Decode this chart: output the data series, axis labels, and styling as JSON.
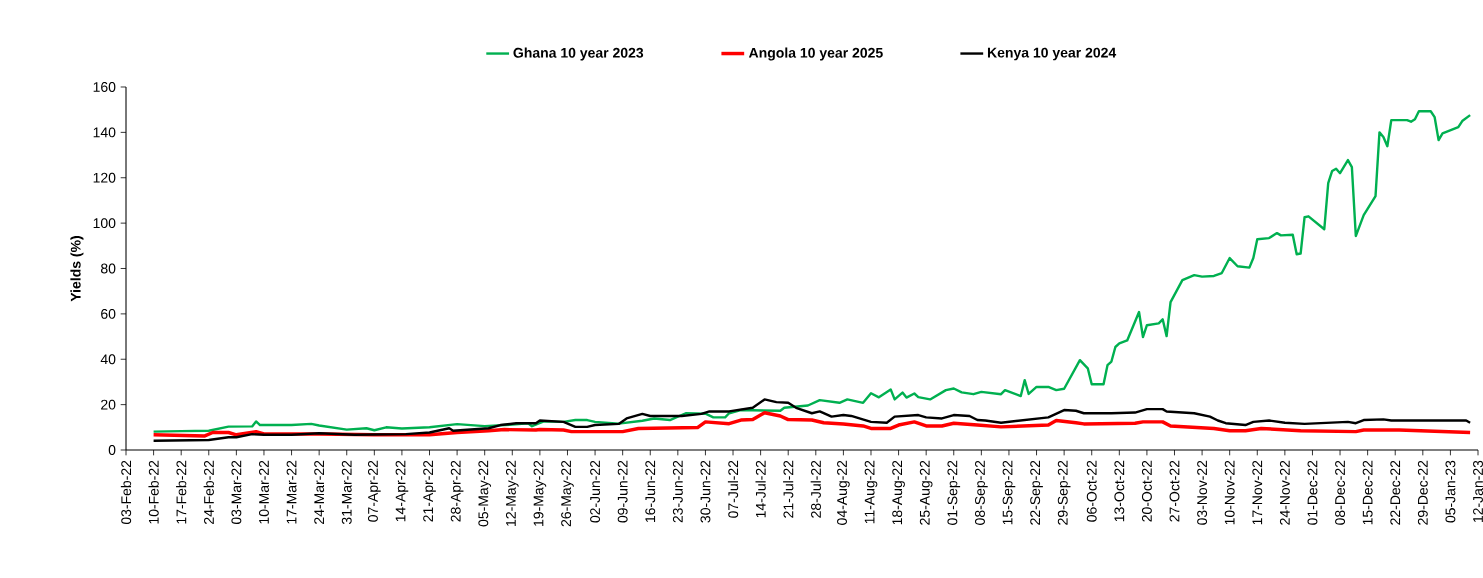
{
  "chart_data": {
    "type": "line",
    "ylabel": "Yields (%)",
    "legend": "top",
    "line_style": "solid",
    "marker": "none",
    "grid": false,
    "xlim": [
      "2022-02-03",
      "2023-01-12"
    ],
    "ylim": [
      0,
      160
    ],
    "yticks": [
      0,
      20,
      40,
      60,
      80,
      100,
      120,
      140,
      160
    ],
    "xticks": [
      {
        "value": "2022-02-03",
        "label": "03-Feb-22"
      },
      {
        "value": "2022-02-10",
        "label": "10-Feb-22"
      },
      {
        "value": "2022-02-17",
        "label": "17-Feb-22"
      },
      {
        "value": "2022-02-24",
        "label": "24-Feb-22"
      },
      {
        "value": "2022-03-03",
        "label": "03-Mar-22"
      },
      {
        "value": "2022-03-10",
        "label": "10-Mar-22"
      },
      {
        "value": "2022-03-17",
        "label": "17-Mar-22"
      },
      {
        "value": "2022-03-24",
        "label": "24-Mar-22"
      },
      {
        "value": "2022-03-31",
        "label": "31-Mar-22"
      },
      {
        "value": "2022-04-07",
        "label": "07-Apr-22"
      },
      {
        "value": "2022-04-14",
        "label": "14-Apr-22"
      },
      {
        "value": "2022-04-21",
        "label": "21-Apr-22"
      },
      {
        "value": "2022-04-28",
        "label": "28-Apr-22"
      },
      {
        "value": "2022-05-05",
        "label": "05-May-22"
      },
      {
        "value": "2022-05-12",
        "label": "12-May-22"
      },
      {
        "value": "2022-05-19",
        "label": "19-May-22"
      },
      {
        "value": "2022-05-26",
        "label": "26-May-22"
      },
      {
        "value": "2022-06-02",
        "label": "02-Jun-22"
      },
      {
        "value": "2022-06-09",
        "label": "09-Jun-22"
      },
      {
        "value": "2022-06-16",
        "label": "16-Jun-22"
      },
      {
        "value": "2022-06-23",
        "label": "23-Jun-22"
      },
      {
        "value": "2022-06-30",
        "label": "30-Jun-22"
      },
      {
        "value": "2022-07-07",
        "label": "07-Jul-22"
      },
      {
        "value": "2022-07-14",
        "label": "14-Jul-22"
      },
      {
        "value": "2022-07-21",
        "label": "21-Jul-22"
      },
      {
        "value": "2022-07-28",
        "label": "28-Jul-22"
      },
      {
        "value": "2022-08-04",
        "label": "04-Aug-22"
      },
      {
        "value": "2022-08-11",
        "label": "11-Aug-22"
      },
      {
        "value": "2022-08-18",
        "label": "18-Aug-22"
      },
      {
        "value": "2022-08-25",
        "label": "25-Aug-22"
      },
      {
        "value": "2022-09-01",
        "label": "01-Sep-22"
      },
      {
        "value": "2022-09-08",
        "label": "08-Sep-22"
      },
      {
        "value": "2022-09-15",
        "label": "15-Sep-22"
      },
      {
        "value": "2022-09-22",
        "label": "22-Sep-22"
      },
      {
        "value": "2022-09-29",
        "label": "29-Sep-22"
      },
      {
        "value": "2022-10-06",
        "label": "06-Oct-22"
      },
      {
        "value": "2022-10-13",
        "label": "13-Oct-22"
      },
      {
        "value": "2022-10-20",
        "label": "20-Oct-22"
      },
      {
        "value": "2022-10-27",
        "label": "27-Oct-22"
      },
      {
        "value": "2022-11-03",
        "label": "03-Nov-22"
      },
      {
        "value": "2022-11-10",
        "label": "10-Nov-22"
      },
      {
        "value": "2022-11-17",
        "label": "17-Nov-22"
      },
      {
        "value": "2022-11-24",
        "label": "24-Nov-22"
      },
      {
        "value": "2022-12-01",
        "label": "01-Dec-22"
      },
      {
        "value": "2022-12-08",
        "label": "08-Dec-22"
      },
      {
        "value": "2022-12-15",
        "label": "15-Dec-22"
      },
      {
        "value": "2022-12-22",
        "label": "22-Dec-22"
      },
      {
        "value": "2022-12-29",
        "label": "29-Dec-22"
      },
      {
        "value": "2023-01-05",
        "label": "05-Jan-23"
      },
      {
        "value": "2023-01-12",
        "label": "12-Jan-23"
      }
    ],
    "series": [
      {
        "name": "Ghana 10 year 2023",
        "color": "#00b050",
        "x": [
          "2022-02-10",
          "2022-02-17",
          "2022-02-24",
          "2022-03-01",
          "2022-03-07",
          "2022-03-08",
          "2022-03-09",
          "2022-03-17",
          "2022-03-22",
          "2022-03-24",
          "2022-03-31",
          "2022-04-05",
          "2022-04-07",
          "2022-04-10",
          "2022-04-14",
          "2022-04-21",
          "2022-04-28",
          "2022-05-05",
          "2022-05-12",
          "2022-05-16",
          "2022-05-17",
          "2022-05-20",
          "2022-05-25",
          "2022-05-28",
          "2022-05-31",
          "2022-06-02",
          "2022-06-08",
          "2022-06-14",
          "2022-06-17",
          "2022-06-21",
          "2022-06-25",
          "2022-06-30",
          "2022-07-02",
          "2022-07-05",
          "2022-07-06",
          "2022-07-09",
          "2022-07-19",
          "2022-07-20",
          "2022-07-26",
          "2022-07-29",
          "2022-08-03",
          "2022-08-05",
          "2022-08-09",
          "2022-08-11",
          "2022-08-13",
          "2022-08-16",
          "2022-08-17",
          "2022-08-19",
          "2022-08-20",
          "2022-08-22",
          "2022-08-23",
          "2022-08-26",
          "2022-08-30",
          "2022-09-01",
          "2022-09-03",
          "2022-09-06",
          "2022-09-08",
          "2022-09-13",
          "2022-09-14",
          "2022-09-18",
          "2022-09-19",
          "2022-09-20",
          "2022-09-22",
          "2022-09-25",
          "2022-09-27",
          "2022-09-29",
          "2022-10-03",
          "2022-10-05",
          "2022-10-06",
          "2022-10-09",
          "2022-10-10",
          "2022-10-11",
          "2022-10-12",
          "2022-10-13",
          "2022-10-15",
          "2022-10-18",
          "2022-10-19",
          "2022-10-20",
          "2022-10-23",
          "2022-10-24",
          "2022-10-25",
          "2022-10-26",
          "2022-10-29",
          "2022-11-01",
          "2022-11-03",
          "2022-11-06",
          "2022-11-08",
          "2022-11-10",
          "2022-11-12",
          "2022-11-15",
          "2022-11-16",
          "2022-11-17",
          "2022-11-20",
          "2022-11-22",
          "2022-11-23",
          "2022-11-26",
          "2022-11-27",
          "2022-11-28",
          "2022-11-29",
          "2022-11-30",
          "2022-12-04",
          "2022-12-05",
          "2022-12-06",
          "2022-12-07",
          "2022-12-08",
          "2022-12-10",
          "2022-12-11",
          "2022-12-12",
          "2022-12-14",
          "2022-12-17",
          "2022-12-18",
          "2022-12-19",
          "2022-12-20",
          "2022-12-21",
          "2022-12-25",
          "2022-12-26",
          "2022-12-27",
          "2022-12-28",
          "2022-12-31",
          "2023-01-01",
          "2023-01-02",
          "2023-01-03",
          "2023-01-07",
          "2023-01-08",
          "2023-01-10"
        ],
        "values": [
          8.1,
          8.3,
          8.5,
          10.3,
          10.4,
          12.6,
          11,
          11,
          11.5,
          10.8,
          9,
          9.6,
          8.7,
          10,
          9.5,
          10,
          11.4,
          10.5,
          11.2,
          11.8,
          10.5,
          12.6,
          12.4,
          13.2,
          13.2,
          12.4,
          11.6,
          12.9,
          13.9,
          13.2,
          16.2,
          16,
          14.4,
          14.4,
          16.2,
          17.6,
          17.3,
          18.6,
          19.6,
          22,
          20.8,
          22.3,
          20.8,
          25,
          23.2,
          26.7,
          22.3,
          25.3,
          23.1,
          24.9,
          23.3,
          22.3,
          26.4,
          27.1,
          25.4,
          24.6,
          25.6,
          24.6,
          26.4,
          23.8,
          30.8,
          24.7,
          27.8,
          27.8,
          26.4,
          27,
          39.6,
          36,
          29,
          29,
          37.4,
          39,
          45.4,
          47,
          48.3,
          60.8,
          49.8,
          55,
          55.8,
          57.6,
          50.2,
          65.2,
          74.9,
          77.1,
          76.4,
          76.7,
          78,
          84.6,
          81,
          80.4,
          84.6,
          92.9,
          93.4,
          95.6,
          94.6,
          94.9,
          86.3,
          86.6,
          102.6,
          103,
          97.3,
          117.6,
          123,
          124,
          122,
          127.8,
          124.7,
          94.3,
          103.5,
          111.9,
          140,
          138,
          133.9,
          145.4,
          145.4,
          144.7,
          145.8,
          149.3,
          149.3,
          146.7,
          136.6,
          139.6,
          142.3,
          145,
          147.6
        ]
      },
      {
        "name": "Angola 10 year 2025",
        "color": "#ff0000",
        "x": [
          "2022-02-10",
          "2022-02-23",
          "2022-02-25",
          "2022-03-01",
          "2022-03-03",
          "2022-03-08",
          "2022-03-10",
          "2022-03-24",
          "2022-04-07",
          "2022-04-21",
          "2022-04-28",
          "2022-05-06",
          "2022-05-10",
          "2022-05-18",
          "2022-05-19",
          "2022-05-25",
          "2022-05-27",
          "2022-06-09",
          "2022-06-13",
          "2022-06-28",
          "2022-06-30",
          "2022-07-06",
          "2022-07-09",
          "2022-07-12",
          "2022-07-15",
          "2022-07-19",
          "2022-07-21",
          "2022-07-27",
          "2022-07-30",
          "2022-08-04",
          "2022-08-09",
          "2022-08-11",
          "2022-08-16",
          "2022-08-18",
          "2022-08-22",
          "2022-08-25",
          "2022-08-29",
          "2022-09-01",
          "2022-09-07",
          "2022-09-13",
          "2022-09-25",
          "2022-09-27",
          "2022-10-02",
          "2022-10-04",
          "2022-10-17",
          "2022-10-19",
          "2022-10-24",
          "2022-10-26",
          "2022-11-06",
          "2022-11-10",
          "2022-11-14",
          "2022-11-18",
          "2022-11-28",
          "2022-12-12",
          "2022-12-14",
          "2022-12-23",
          "2023-01-10"
        ],
        "values": [
          6.7,
          6.2,
          7.7,
          7.7,
          6.7,
          8.1,
          7.1,
          7.1,
          6.7,
          6.7,
          7.7,
          8.5,
          9,
          8.8,
          9,
          8.8,
          8.1,
          8.1,
          9.5,
          9.9,
          12.4,
          11.6,
          13.2,
          13.4,
          16.4,
          15,
          13.4,
          13.2,
          12,
          11.5,
          10.6,
          9.5,
          9.5,
          11,
          12.4,
          10.6,
          10.6,
          11.8,
          11,
          10.2,
          11,
          13,
          12,
          11.5,
          11.8,
          12.4,
          12.4,
          10.6,
          9.5,
          8.5,
          8.5,
          9.5,
          8.5,
          8.1,
          8.8,
          8.8,
          7.7
        ]
      },
      {
        "name": "Kenya 10 year 2024",
        "color": "#000000",
        "x": [
          "2022-02-10",
          "2022-02-24",
          "2022-03-01",
          "2022-03-03",
          "2022-03-07",
          "2022-03-10",
          "2022-03-17",
          "2022-03-24",
          "2022-04-02",
          "2022-04-15",
          "2022-04-21",
          "2022-04-26",
          "2022-04-27",
          "2022-05-06",
          "2022-05-09",
          "2022-05-13",
          "2022-05-18",
          "2022-05-19",
          "2022-05-25",
          "2022-05-28",
          "2022-05-31",
          "2022-06-02",
          "2022-06-08",
          "2022-06-10",
          "2022-06-14",
          "2022-06-16",
          "2022-06-24",
          "2022-06-29",
          "2022-07-01",
          "2022-07-06",
          "2022-07-12",
          "2022-07-15",
          "2022-07-18",
          "2022-07-21",
          "2022-07-23",
          "2022-07-27",
          "2022-07-29",
          "2022-08-01",
          "2022-08-04",
          "2022-08-06",
          "2022-08-11",
          "2022-08-15",
          "2022-08-17",
          "2022-08-23",
          "2022-08-25",
          "2022-08-29",
          "2022-09-01",
          "2022-09-05",
          "2022-09-07",
          "2022-09-09",
          "2022-09-13",
          "2022-09-25",
          "2022-09-29",
          "2022-10-02",
          "2022-10-04",
          "2022-10-11",
          "2022-10-17",
          "2022-10-20",
          "2022-10-24",
          "2022-10-25",
          "2022-11-01",
          "2022-11-05",
          "2022-11-07",
          "2022-11-09",
          "2022-11-14",
          "2022-11-16",
          "2022-11-20",
          "2022-11-24",
          "2022-11-29",
          "2022-12-10",
          "2022-12-12",
          "2022-12-14",
          "2022-12-19",
          "2022-12-21",
          "2023-01-09",
          "2023-01-10"
        ],
        "values": [
          4.1,
          4.4,
          5.6,
          5.6,
          7,
          6.7,
          6.7,
          7.4,
          6.7,
          7,
          7.7,
          9.6,
          8.5,
          9.6,
          11,
          11.8,
          11.8,
          13,
          12.4,
          10.2,
          10.2,
          11,
          11.5,
          13.9,
          15.9,
          15,
          15,
          15.9,
          17,
          17,
          18.6,
          22.3,
          21.1,
          20.8,
          18.6,
          16.2,
          17,
          14.7,
          15.4,
          15,
          12.4,
          12,
          14.7,
          15.4,
          14.4,
          13.9,
          15.4,
          15,
          13.2,
          13,
          12,
          14.4,
          17.6,
          17.3,
          16.2,
          16.2,
          16.5,
          18,
          18,
          17,
          16.2,
          14.7,
          13,
          11.8,
          11,
          12.4,
          13,
          12,
          11.5,
          12.4,
          11.8,
          13.2,
          13.5,
          13,
          13,
          12
        ]
      }
    ]
  }
}
